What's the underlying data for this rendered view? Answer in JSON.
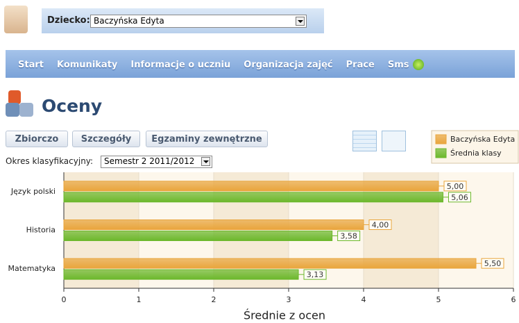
{
  "header": {
    "child_label": "Dziecko:",
    "child_name": "Baczyńska Edyta"
  },
  "nav": [
    "Start",
    "Komunikaty",
    "Informacje o uczniu",
    "Organizacja zajęć",
    "Prace",
    "Sms"
  ],
  "page_title": "Oceny",
  "buttons": [
    "Zbiorczo",
    "Szczegóły",
    "Egzaminy zewnętrzne"
  ],
  "period_label": "Okres klasyfikacyjny:",
  "period_value": "Semestr 2 2011/2012",
  "chart_data": {
    "type": "bar",
    "orientation": "horizontal",
    "categories": [
      "Język polski",
      "Historia",
      "Matematyka"
    ],
    "series": [
      {
        "name": "Baczyńska Edyta",
        "color": "#e9a53c",
        "values": [
          5.0,
          4.0,
          5.5
        ],
        "value_labels": [
          "5,00",
          "4,00",
          "5,50"
        ]
      },
      {
        "name": "Średnia klasy",
        "color": "#6cb82c",
        "values": [
          5.06,
          3.58,
          3.13
        ],
        "value_labels": [
          "5,06",
          "3,58",
          "3,13"
        ]
      }
    ],
    "x_label": "Średnie z ocen",
    "xlim": [
      0,
      6
    ],
    "xticks": [
      0,
      1,
      2,
      3,
      4,
      5,
      6
    ],
    "grid": true,
    "legend": "top-right"
  }
}
